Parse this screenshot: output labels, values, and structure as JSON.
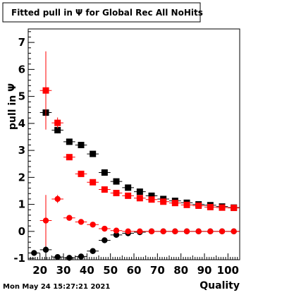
{
  "chart_data": {
    "type": "scatter",
    "title": "Fitted pull in  Ψ  for Global Rec All NoHits",
    "xlabel": "Quality",
    "ylabel": "pull in  Ψ",
    "xlim": [
      15,
      105
    ],
    "ylim": [
      -1.05,
      7.5
    ],
    "x_ticks": [
      20,
      30,
      40,
      50,
      60,
      70,
      80,
      90,
      100
    ],
    "y_ticks": [
      -1,
      0,
      1,
      2,
      3,
      4,
      5,
      6,
      7
    ],
    "grid": false,
    "legend": "none",
    "timestamp": "Mon May 24 15:27:21 2021",
    "series": [
      {
        "marker": "square",
        "color": "#000000",
        "x": [
          22.5,
          27.5,
          32.5,
          37.5,
          42.5,
          47.5,
          52.5,
          57.5,
          62.5,
          67.5,
          72.5,
          77.5,
          82.5,
          87.5,
          92.5,
          97.5,
          102.5
        ],
        "y": [
          4.4,
          3.75,
          3.32,
          3.2,
          2.87,
          2.18,
          1.85,
          1.62,
          1.47,
          1.32,
          1.2,
          1.13,
          1.06,
          1.0,
          0.97,
          0.92,
          0.88
        ],
        "yerr": [
          0.6,
          0.12,
          0.07,
          0.06,
          0.05,
          0.05,
          0.04,
          0.04,
          0.04,
          0.03,
          0.03,
          0.03,
          0.03,
          0.03,
          0.03,
          0.03,
          0.03
        ]
      },
      {
        "marker": "square",
        "color": "#ff0000",
        "x": [
          22.5,
          27.5,
          32.5,
          37.5,
          42.5,
          47.5,
          52.5,
          57.5,
          62.5,
          67.5,
          72.5,
          77.5,
          82.5,
          87.5,
          92.5,
          97.5,
          102.5
        ],
        "y": [
          5.22,
          4.02,
          2.75,
          2.13,
          1.82,
          1.55,
          1.42,
          1.32,
          1.23,
          1.18,
          1.1,
          1.05,
          0.98,
          0.95,
          0.9,
          0.88,
          0.87
        ],
        "yerr": [
          1.45,
          0.2,
          0.1,
          0.07,
          0.06,
          0.05,
          0.05,
          0.04,
          0.04,
          0.03,
          0.03,
          0.03,
          0.03,
          0.03,
          0.03,
          0.03,
          0.03
        ]
      },
      {
        "marker": "circle",
        "color": "#000000",
        "x": [
          17.5,
          22.5,
          27.5,
          32.5,
          37.5,
          42.5,
          47.5,
          52.5,
          57.5,
          62.5,
          67.5,
          72.5,
          77.5,
          82.5,
          87.5,
          92.5,
          97.5,
          102.5
        ],
        "y": [
          -0.8,
          -0.68,
          -0.95,
          -0.98,
          -0.93,
          -0.73,
          -0.33,
          -0.13,
          -0.07,
          -0.03,
          0.0,
          0.0,
          0.0,
          0.0,
          0.0,
          0.0,
          0.0,
          0.0
        ],
        "yerr": [
          0.1,
          0.5,
          0.08,
          0.05,
          0.04,
          0.04,
          0.03,
          0.03,
          0.02,
          0.02,
          0.02,
          0.02,
          0.02,
          0.02,
          0.02,
          0.02,
          0.02,
          0.02
        ]
      },
      {
        "marker": "circle",
        "color": "#ff0000",
        "x": [
          22.5,
          27.5,
          32.5,
          37.5,
          42.5,
          47.5,
          52.5,
          57.5,
          62.5,
          67.5,
          72.5,
          77.5,
          82.5,
          87.5,
          92.5,
          97.5,
          102.5
        ],
        "y": [
          0.4,
          1.2,
          0.5,
          0.35,
          0.25,
          0.1,
          0.03,
          0.0,
          0.0,
          0.0,
          0.0,
          0.0,
          0.0,
          0.0,
          0.0,
          0.0,
          0.0
        ],
        "yerr": [
          0.95,
          0.15,
          0.05,
          0.04,
          0.03,
          0.03,
          0.02,
          0.02,
          0.02,
          0.02,
          0.02,
          0.02,
          0.02,
          0.02,
          0.02,
          0.02,
          0.02
        ]
      }
    ]
  }
}
